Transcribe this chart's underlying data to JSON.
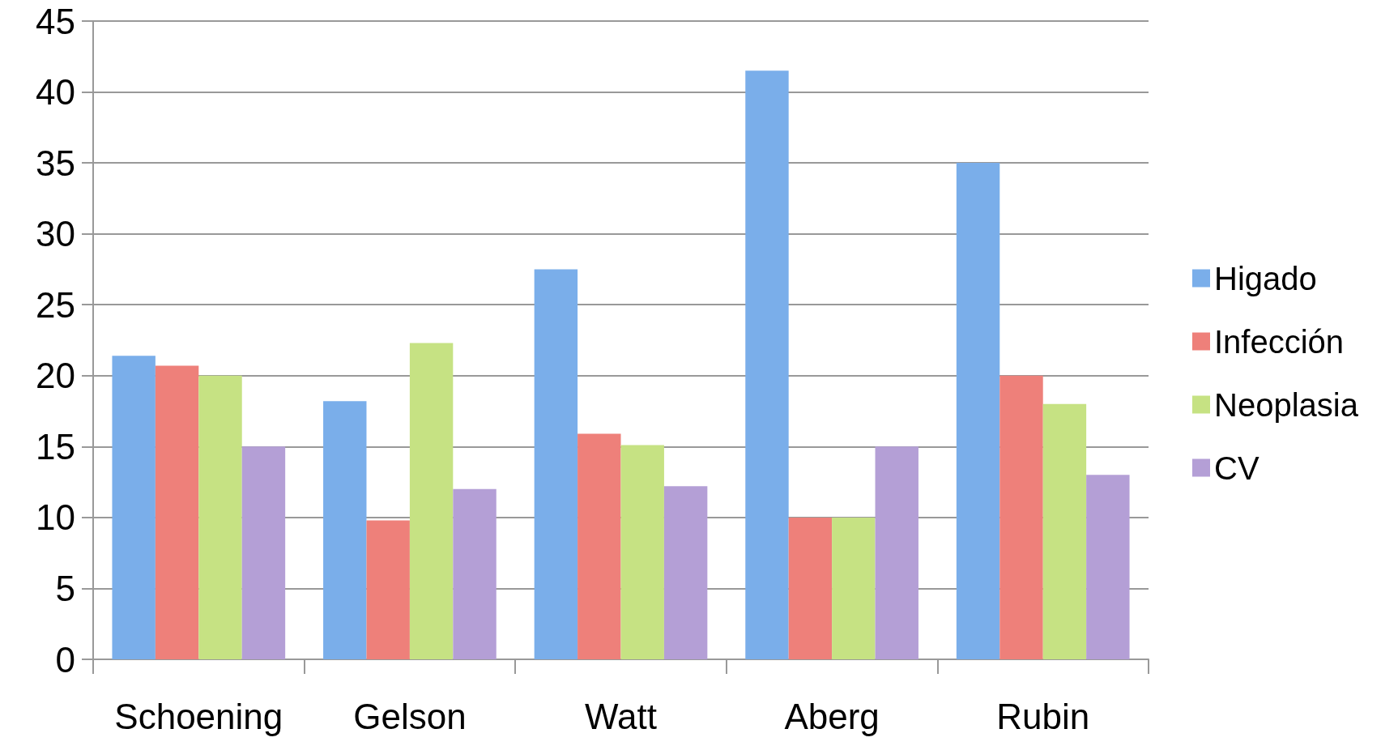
{
  "chart_data": {
    "type": "bar",
    "categories": [
      "Schoening",
      "Gelson",
      "Watt",
      "Aberg",
      "Rubin"
    ],
    "series": [
      {
        "name": "Higado",
        "color": "#7aaeea",
        "values": [
          21.4,
          18.2,
          27.5,
          41.5,
          35.0
        ]
      },
      {
        "name": "Infección",
        "color": "#ee807a",
        "values": [
          20.7,
          9.8,
          15.9,
          10.0,
          20.0
        ]
      },
      {
        "name": "Neoplasia",
        "color": "#c6e283",
        "values": [
          20.0,
          22.3,
          15.1,
          10.0,
          18.0
        ]
      },
      {
        "name": "CV",
        "color": "#b49fd6",
        "values": [
          15.0,
          12.0,
          12.2,
          15.0,
          13.0
        ]
      }
    ],
    "ylim": [
      0,
      45
    ],
    "yticks": [
      0,
      5,
      10,
      15,
      20,
      25,
      30,
      35,
      40,
      45
    ],
    "grid": "y",
    "legend": "right"
  }
}
